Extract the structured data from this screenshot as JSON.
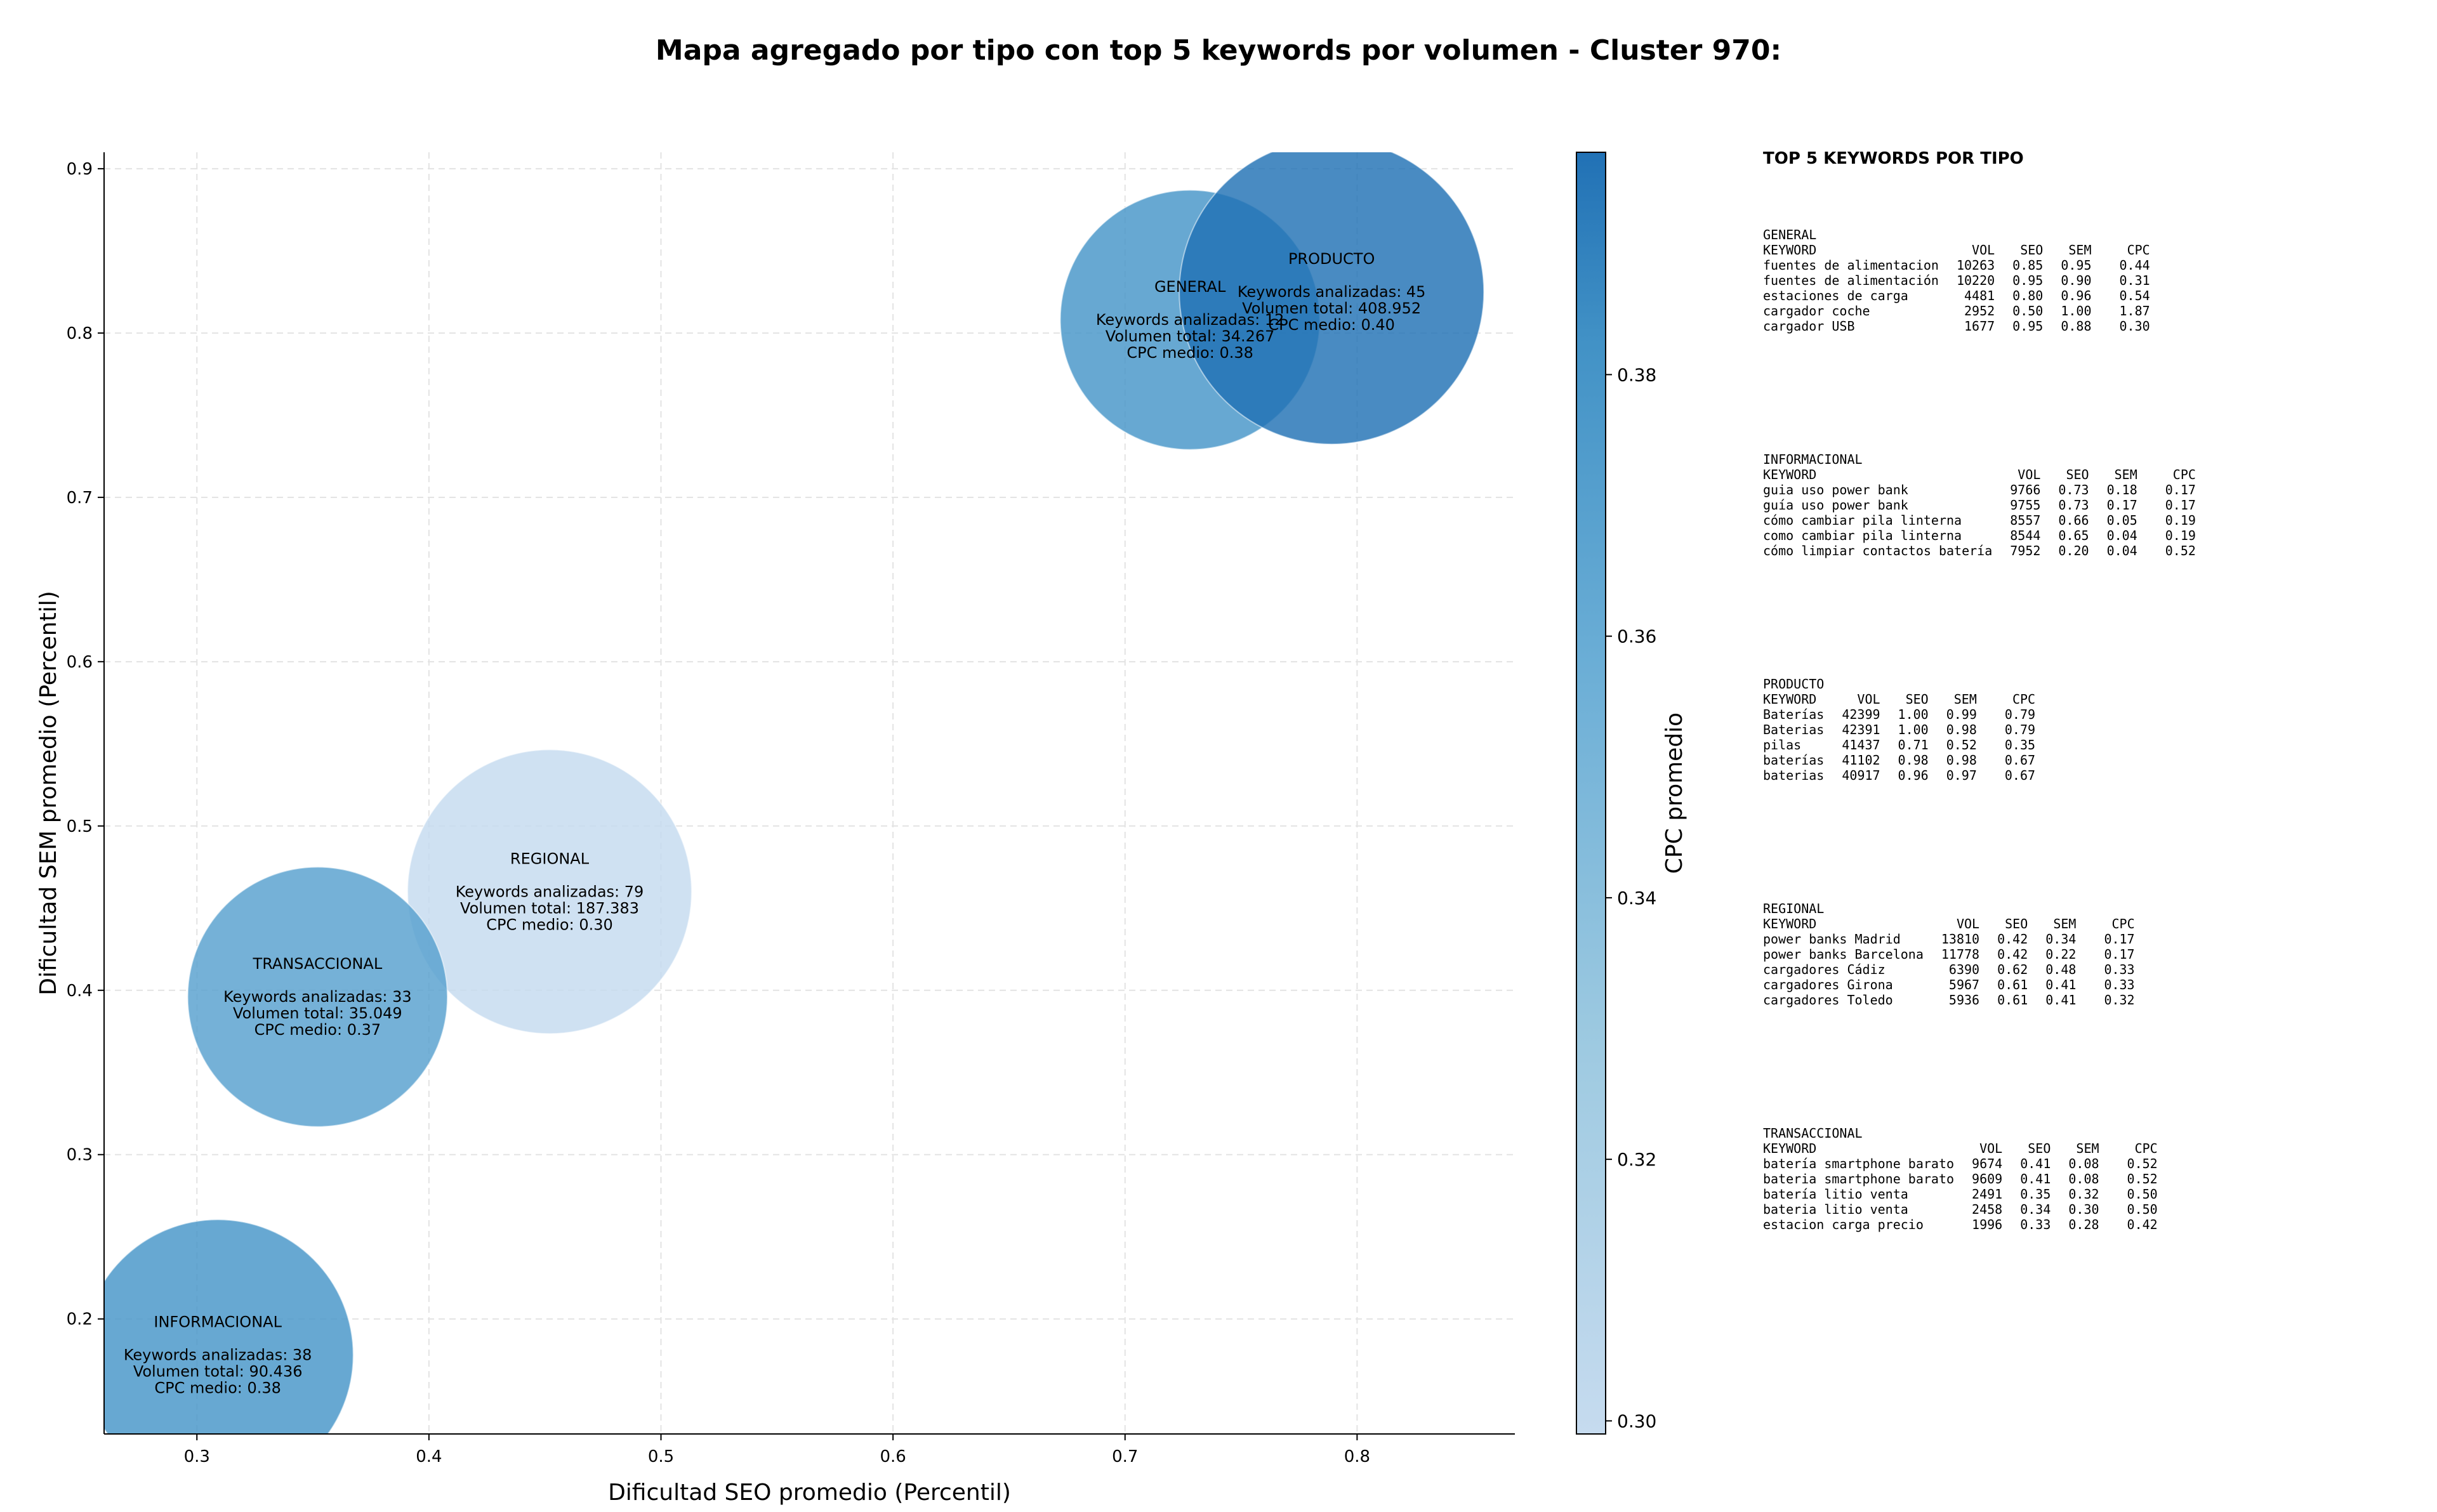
{
  "title": "Mapa agregado por tipo con top 5 keywords por volumen - Cluster 970:",
  "chart_data": {
    "type": "scatter",
    "subtype": "bubble",
    "xlabel": "Dificultad SEO promedio (Percentil)",
    "ylabel": "Dificultad SEM promedio (Percentil)",
    "xlim": [
      0.26,
      0.868
    ],
    "ylim": [
      0.13,
      0.91
    ],
    "xticks": [
      "0.3",
      "0.4",
      "0.5",
      "0.6",
      "0.7",
      "0.8"
    ],
    "yticks": [
      "0.2",
      "0.3",
      "0.4",
      "0.5",
      "0.6",
      "0.7",
      "0.8",
      "0.9"
    ],
    "grid": true,
    "colorbar": {
      "label": "CPC promedio",
      "range": [
        0.299,
        0.397
      ],
      "ticks": [
        "0.30",
        "0.32",
        "0.34",
        "0.36",
        "0.38"
      ],
      "colors": [
        "#c6dbef",
        "#9ecae1",
        "#6baed6",
        "#4292c6",
        "#2171b5"
      ]
    },
    "points": [
      {
        "tipo": "GENERAL",
        "x": 0.728,
        "y": 0.808,
        "keywords": 12,
        "volumen": 34267,
        "cpc": 0.38,
        "lines": [
          "GENERAL",
          "",
          "Keywords analizadas: 12",
          "Volumen total: 34.267",
          "CPC medio: 0.38"
        ]
      },
      {
        "tipo": "PRODUCTO",
        "x": 0.789,
        "y": 0.825,
        "keywords": 45,
        "volumen": 408952,
        "cpc": 0.4,
        "lines": [
          "PRODUCTO",
          "",
          "Keywords analizadas: 45",
          "Volumen total: 408.952",
          "CPC medio: 0.40"
        ]
      },
      {
        "tipo": "REGIONAL",
        "x": 0.452,
        "y": 0.46,
        "keywords": 79,
        "volumen": 187383,
        "cpc": 0.3,
        "lines": [
          "REGIONAL",
          "",
          "Keywords analizadas: 79",
          "Volumen total: 187.383",
          "CPC medio: 0.30"
        ]
      },
      {
        "tipo": "TRANSACCIONAL",
        "x": 0.352,
        "y": 0.396,
        "keywords": 33,
        "volumen": 35049,
        "cpc": 0.37,
        "lines": [
          "TRANSACCIONAL",
          "",
          "Keywords analizadas: 33",
          "Volumen total: 35.049",
          "CPC medio: 0.37"
        ]
      },
      {
        "tipo": "INFORMACIONAL",
        "x": 0.309,
        "y": 0.178,
        "keywords": 38,
        "volumen": 90436,
        "cpc": 0.38,
        "lines": [
          "INFORMACIONAL",
          "",
          "Keywords analizadas: 38",
          "Volumen total: 90.436",
          "CPC medio: 0.38"
        ]
      }
    ]
  },
  "panel": {
    "title": "TOP 5 KEYWORDS POR TIPO",
    "headers": [
      "KEYWORD",
      "VOL",
      "SEO",
      "SEM",
      "CPC"
    ],
    "groups": [
      {
        "name": "GENERAL",
        "rows": [
          [
            "fuentes de alimentacion",
            "10263",
            "0.85",
            "0.95",
            "0.44"
          ],
          [
            "fuentes de alimentación",
            "10220",
            "0.95",
            "0.90",
            "0.31"
          ],
          [
            "estaciones de carga",
            "4481",
            "0.80",
            "0.96",
            "0.54"
          ],
          [
            "cargador coche",
            "2952",
            "0.50",
            "1.00",
            "1.87"
          ],
          [
            "cargador USB",
            "1677",
            "0.95",
            "0.88",
            "0.30"
          ]
        ]
      },
      {
        "name": "INFORMACIONAL",
        "rows": [
          [
            "guia uso power bank",
            "9766",
            "0.73",
            "0.18",
            "0.17"
          ],
          [
            "guía uso power bank",
            "9755",
            "0.73",
            "0.17",
            "0.17"
          ],
          [
            "cómo cambiar pila linterna",
            "8557",
            "0.66",
            "0.05",
            "0.19"
          ],
          [
            "como cambiar pila linterna",
            "8544",
            "0.65",
            "0.04",
            "0.19"
          ],
          [
            "cómo limpiar contactos batería",
            "7952",
            "0.20",
            "0.04",
            "0.52"
          ]
        ]
      },
      {
        "name": "PRODUCTO",
        "rows": [
          [
            "Baterías",
            "42399",
            "1.00",
            "0.99",
            "0.79"
          ],
          [
            "Baterias",
            "42391",
            "1.00",
            "0.98",
            "0.79"
          ],
          [
            "pilas",
            "41437",
            "0.71",
            "0.52",
            "0.35"
          ],
          [
            "baterías",
            "41102",
            "0.98",
            "0.98",
            "0.67"
          ],
          [
            "baterias",
            "40917",
            "0.96",
            "0.97",
            "0.67"
          ]
        ]
      },
      {
        "name": "REGIONAL",
        "rows": [
          [
            "power banks Madrid",
            "13810",
            "0.42",
            "0.34",
            "0.17"
          ],
          [
            "power banks Barcelona",
            "11778",
            "0.42",
            "0.22",
            "0.17"
          ],
          [
            "cargadores Cádiz",
            "6390",
            "0.62",
            "0.48",
            "0.33"
          ],
          [
            "cargadores Girona",
            "5967",
            "0.61",
            "0.41",
            "0.33"
          ],
          [
            "cargadores Toledo",
            "5936",
            "0.61",
            "0.41",
            "0.32"
          ]
        ]
      },
      {
        "name": "TRANSACCIONAL",
        "rows": [
          [
            "batería smartphone barato",
            "9674",
            "0.41",
            "0.08",
            "0.52"
          ],
          [
            "bateria smartphone barato",
            "9609",
            "0.41",
            "0.08",
            "0.52"
          ],
          [
            "batería litio venta",
            "2491",
            "0.35",
            "0.32",
            "0.50"
          ],
          [
            "bateria litio venta",
            "2458",
            "0.34",
            "0.30",
            "0.50"
          ],
          [
            "estacion carga precio",
            "1996",
            "0.33",
            "0.28",
            "0.42"
          ]
        ]
      }
    ]
  }
}
